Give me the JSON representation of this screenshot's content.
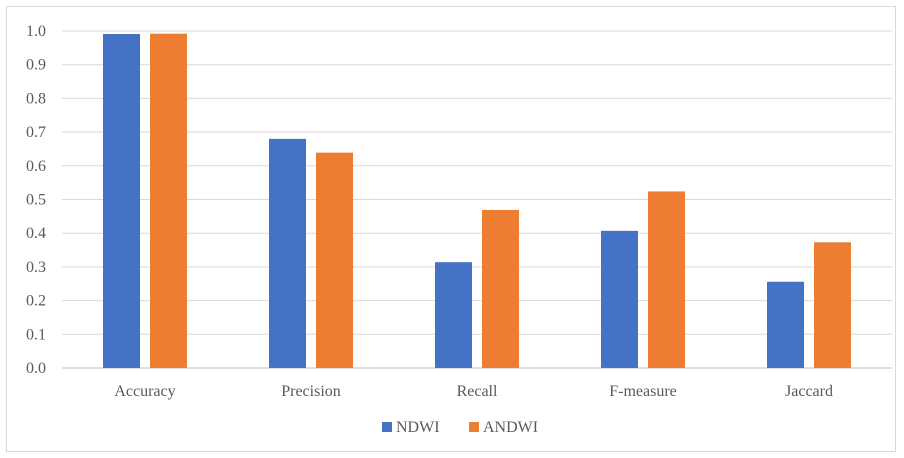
{
  "chart_data": {
    "type": "bar",
    "categories": [
      "Accuracy",
      "Precision",
      "Recall",
      "F-measure",
      "Jaccard"
    ],
    "series": [
      {
        "name": "NDWI",
        "color": "#4472C4",
        "values": [
          0.991,
          0.68,
          0.314,
          0.407,
          0.256
        ]
      },
      {
        "name": "ANDWI",
        "color": "#ED7D31",
        "values": [
          0.992,
          0.639,
          0.469,
          0.524,
          0.373
        ]
      }
    ],
    "yticks": [
      "0.0",
      "0.1",
      "0.2",
      "0.3",
      "0.4",
      "0.5",
      "0.6",
      "0.7",
      "0.8",
      "0.9",
      "1.0"
    ],
    "ylim": [
      0,
      1.0
    ],
    "grid": true,
    "legend_position": "bottom",
    "title": "",
    "xlabel": "",
    "ylabel": ""
  }
}
